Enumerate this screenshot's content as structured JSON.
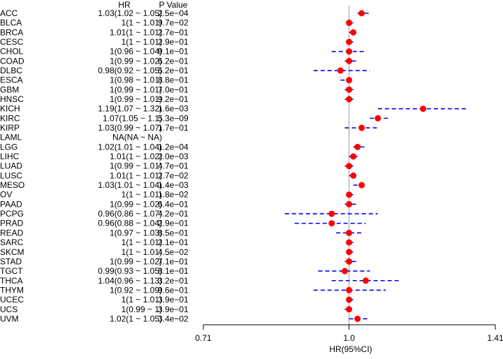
{
  "chart_data": {
    "type": "forest",
    "headers": {
      "hr": "HR",
      "pvalue": "P Value"
    },
    "xlabel": "HR(95%CI)",
    "xlim": [
      0.71,
      1.41
    ],
    "xticks": [
      "0.71",
      "1.0",
      "1.41"
    ],
    "reference_line": 1.0,
    "colors": {
      "point": "#ff0000",
      "ci": "#0000ff",
      "ref": "#999999"
    },
    "rows": [
      {
        "cancer": "ACC",
        "hr_text": "1.03(1.02 ~ 1.05)",
        "p": "2.5e−04",
        "hr": 1.03,
        "lo": 1.02,
        "hi": 1.05
      },
      {
        "cancer": "BLCA",
        "hr_text": "1(1 ~ 1.01)",
        "p": "9.7e−02",
        "hr": 1.0,
        "lo": 1.0,
        "hi": 1.01
      },
      {
        "cancer": "BRCA",
        "hr_text": "1.01(1 ~ 1.01)",
        "p": "2.7e−01",
        "hr": 1.01,
        "lo": 1.0,
        "hi": 1.01
      },
      {
        "cancer": "CESC",
        "hr_text": "1(1 ~ 1.01)",
        "p": "2.9e−01",
        "hr": 1.0,
        "lo": 1.0,
        "hi": 1.01
      },
      {
        "cancer": "CHOL",
        "hr_text": "1(0.96 ~ 1.04)",
        "p": "9.1e−01",
        "hr": 1.0,
        "lo": 0.96,
        "hi": 1.04
      },
      {
        "cancer": "COAD",
        "hr_text": "1(0.99 ~ 1.02)",
        "p": "6.2e−01",
        "hr": 1.0,
        "lo": 0.99,
        "hi": 1.02
      },
      {
        "cancer": "DLBC",
        "hr_text": "0.98(0.92 ~ 1.05)",
        "p": "5.2e−01",
        "hr": 0.98,
        "lo": 0.92,
        "hi": 1.05
      },
      {
        "cancer": "ESCA",
        "hr_text": "1(0.98 ~ 1.01)",
        "p": "8.8e−01",
        "hr": 1.0,
        "lo": 0.98,
        "hi": 1.01
      },
      {
        "cancer": "GBM",
        "hr_text": "1(0.99 ~ 1.01)",
        "p": "7.0e−01",
        "hr": 1.0,
        "lo": 0.99,
        "hi": 1.01
      },
      {
        "cancer": "HNSC",
        "hr_text": "1(0.99 ~ 1.01)",
        "p": "9.2e−01",
        "hr": 1.0,
        "lo": 0.99,
        "hi": 1.01
      },
      {
        "cancer": "KICH",
        "hr_text": "1.19(1.07 ~ 1.32)",
        "p": "1.6e−03",
        "hr": 1.19,
        "lo": 1.07,
        "hi": 1.32
      },
      {
        "cancer": "KIRC",
        "hr_text": "1.07(1.05 ~ 1.1)",
        "p": "5.3e−09",
        "hr": 1.07,
        "lo": 1.05,
        "hi": 1.1
      },
      {
        "cancer": "KIRP",
        "hr_text": "1.03(0.99 ~ 1.07)",
        "p": "1.7e−01",
        "hr": 1.03,
        "lo": 0.99,
        "hi": 1.07
      },
      {
        "cancer": "LAML",
        "hr_text": "NA(NA ~ NA)",
        "p": "",
        "hr": null,
        "lo": null,
        "hi": null
      },
      {
        "cancer": "LGG",
        "hr_text": "1.02(1.01 ~ 1.04)",
        "p": "1.2e−04",
        "hr": 1.02,
        "lo": 1.01,
        "hi": 1.04
      },
      {
        "cancer": "LIHC",
        "hr_text": "1.01(1 ~ 1.02)",
        "p": "2.0e−03",
        "hr": 1.01,
        "lo": 1.0,
        "hi": 1.02
      },
      {
        "cancer": "LUAD",
        "hr_text": "1(0.99 ~ 1.01)",
        "p": "4.7e−01",
        "hr": 1.0,
        "lo": 0.99,
        "hi": 1.01
      },
      {
        "cancer": "LUSC",
        "hr_text": "1.01(1 ~ 1.01)",
        "p": "2.7e−02",
        "hr": 1.01,
        "lo": 1.0,
        "hi": 1.01
      },
      {
        "cancer": "MESO",
        "hr_text": "1.03(1.01 ~ 1.04)",
        "p": "1.4e−03",
        "hr": 1.03,
        "lo": 1.01,
        "hi": 1.04
      },
      {
        "cancer": "OV",
        "hr_text": "1(1 ~ 1.01)",
        "p": "1.8e−02",
        "hr": 1.0,
        "lo": 1.0,
        "hi": 1.01
      },
      {
        "cancer": "PAAD",
        "hr_text": "1(0.99 ~ 1.02)",
        "p": "6.4e−01",
        "hr": 1.0,
        "lo": 0.99,
        "hi": 1.02
      },
      {
        "cancer": "PCPG",
        "hr_text": "0.96(0.86 ~ 1.07)",
        "p": "4.2e−01",
        "hr": 0.96,
        "lo": 0.86,
        "hi": 1.07
      },
      {
        "cancer": "PRAD",
        "hr_text": "0.96(0.88 ~ 1.04)",
        "p": "2.9e−01",
        "hr": 0.96,
        "lo": 0.88,
        "hi": 1.04
      },
      {
        "cancer": "READ",
        "hr_text": "1(0.97 ~ 1.03)",
        "p": "8.5e−01",
        "hr": 1.0,
        "lo": 0.97,
        "hi": 1.03
      },
      {
        "cancer": "SARC",
        "hr_text": "1(1 ~ 1.01)",
        "p": "2.1e−01",
        "hr": 1.0,
        "lo": 1.0,
        "hi": 1.01
      },
      {
        "cancer": "SKCM",
        "hr_text": "1(1 ~ 1.01)",
        "p": "4.5e−02",
        "hr": 1.0,
        "lo": 1.0,
        "hi": 1.01
      },
      {
        "cancer": "STAD",
        "hr_text": "1(0.99 ~ 1.02)",
        "p": "7.1e−01",
        "hr": 1.0,
        "lo": 0.99,
        "hi": 1.02
      },
      {
        "cancer": "TGCT",
        "hr_text": "0.99(0.93 ~ 1.05)",
        "p": "8.1e−01",
        "hr": 0.99,
        "lo": 0.93,
        "hi": 1.05
      },
      {
        "cancer": "THCA",
        "hr_text": "1.04(0.96 ~ 1.13)",
        "p": "3.2e−01",
        "hr": 1.04,
        "lo": 0.96,
        "hi": 1.13
      },
      {
        "cancer": "THYM",
        "hr_text": "1(0.92 ~ 1.09)",
        "p": "9.6e−01",
        "hr": 1.0,
        "lo": 0.92,
        "hi": 1.09
      },
      {
        "cancer": "UCEC",
        "hr_text": "1(1 ~ 1.01)",
        "p": "3.9e−01",
        "hr": 1.0,
        "lo": 1.0,
        "hi": 1.01
      },
      {
        "cancer": "UCS",
        "hr_text": "1(0.99 ~ 1)",
        "p": "3.9e−01",
        "hr": 1.0,
        "lo": 0.99,
        "hi": 1.0
      },
      {
        "cancer": "UVM",
        "hr_text": "1.02(1 ~ 1.05)",
        "p": "3.4e−02",
        "hr": 1.02,
        "lo": 1.0,
        "hi": 1.05
      }
    ]
  }
}
